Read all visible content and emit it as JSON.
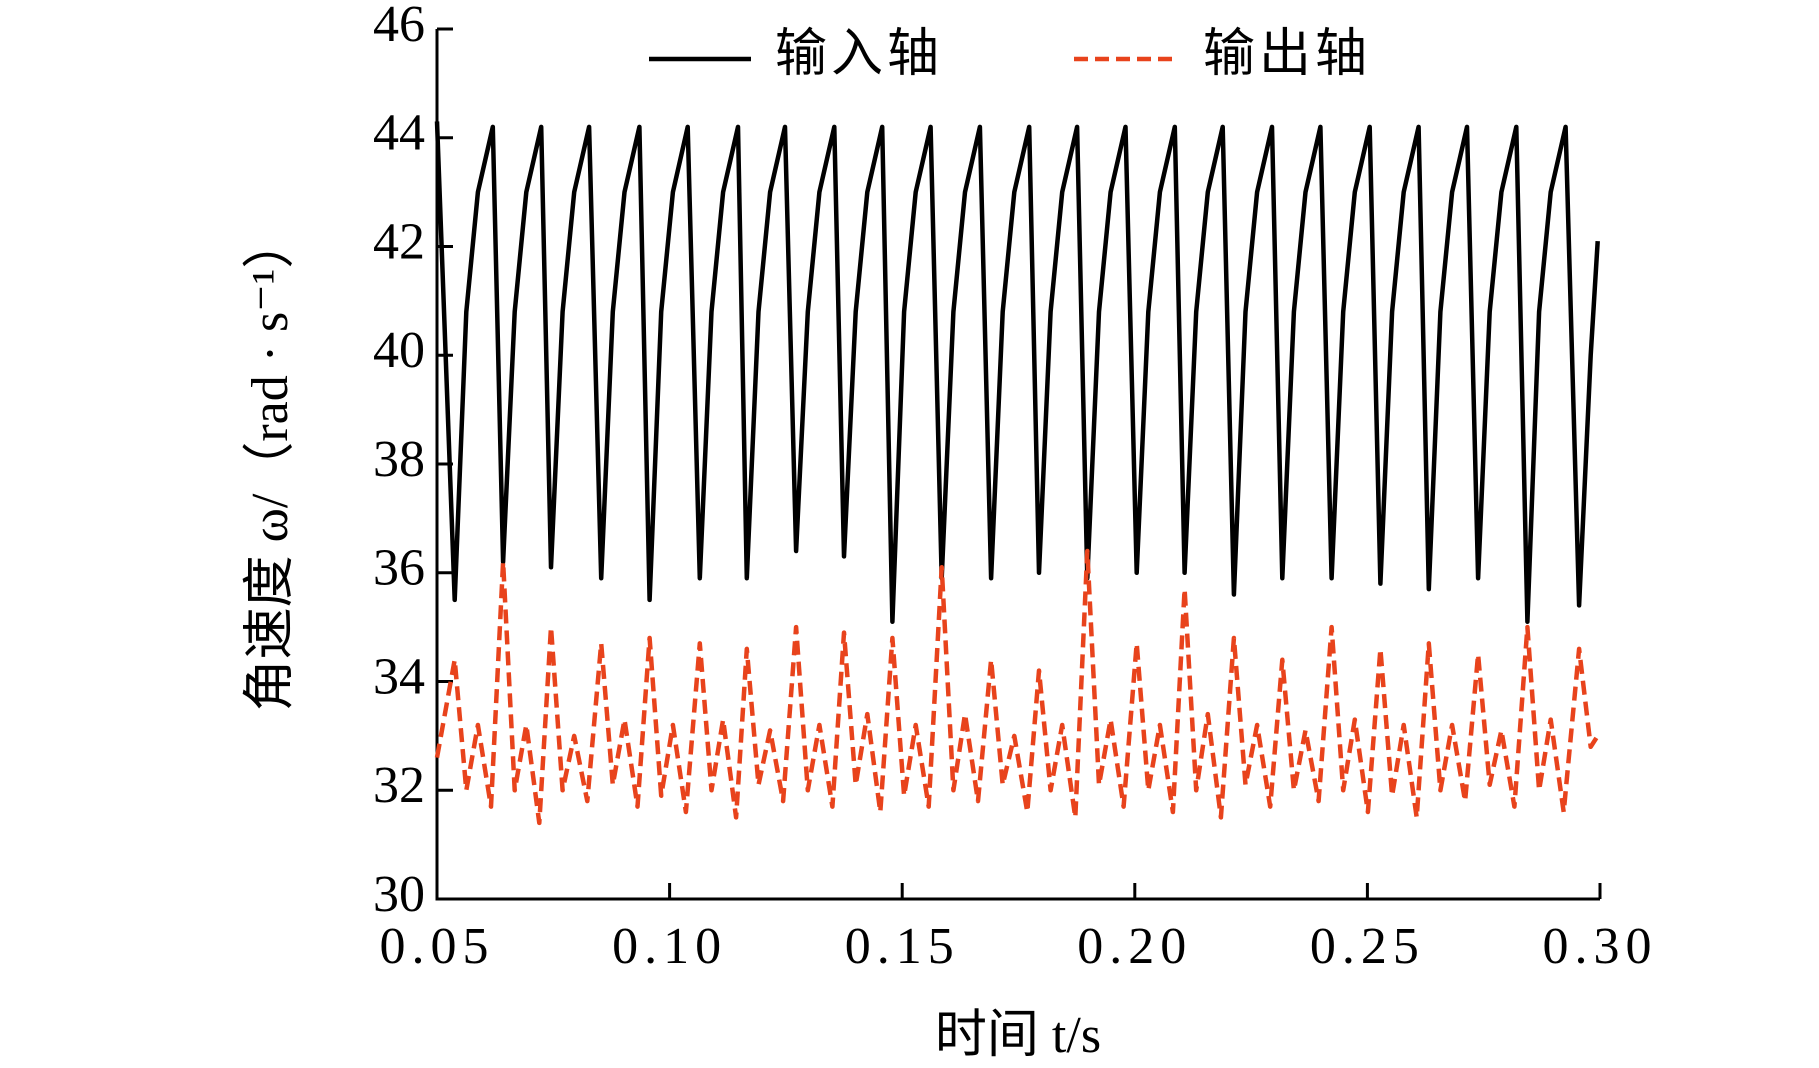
{
  "chart_data": {
    "type": "line",
    "xlabel": "时间 t/s",
    "ylabel": "角速度 ω/（rad · s⁻¹）",
    "xlim": [
      0.05,
      0.3
    ],
    "ylim": [
      30,
      46
    ],
    "xticks": [
      0.05,
      {
        "value": 0.1,
        "label": "0.10"
      },
      0.15,
      {
        "value": 0.2,
        "label": "0.20"
      },
      0.25,
      {
        "value": 0.3,
        "label": "0.30"
      }
    ],
    "yticks": [
      30,
      32,
      34,
      36,
      38,
      40,
      42,
      44,
      46
    ],
    "legend": "top",
    "series": [
      {
        "name": "输入轴",
        "color": "#000000",
        "dash": false,
        "x": [
          0.05,
          0.0538,
          0.0563,
          0.0588,
          0.062,
          0.0642,
          0.0667,
          0.0692,
          0.0724,
          0.0745,
          0.077,
          0.0795,
          0.0827,
          0.0853,
          0.0878,
          0.0903,
          0.0935,
          0.0957,
          0.0982,
          0.1007,
          0.1039,
          0.1065,
          0.109,
          0.1115,
          0.1147,
          0.1166,
          0.1191,
          0.1216,
          0.1248,
          0.1272,
          0.1297,
          0.1322,
          0.1354,
          0.1375,
          0.14,
          0.1425,
          0.1457,
          0.1479,
          0.1504,
          0.1529,
          0.1561,
          0.1585,
          0.161,
          0.1635,
          0.1667,
          0.1691,
          0.1716,
          0.1741,
          0.1773,
          0.1794,
          0.1819,
          0.1844,
          0.1876,
          0.1898,
          0.1923,
          0.1948,
          0.198,
          0.2004,
          0.2029,
          0.2054,
          0.2086,
          0.2107,
          0.2132,
          0.2157,
          0.2189,
          0.2213,
          0.2238,
          0.2263,
          0.2295,
          0.2317,
          0.2342,
          0.2367,
          0.2399,
          0.2423,
          0.2448,
          0.2473,
          0.2505,
          0.2528,
          0.2553,
          0.2578,
          0.261,
          0.2632,
          0.2657,
          0.2682,
          0.2714,
          0.2738,
          0.2763,
          0.2788,
          0.282,
          0.2844,
          0.2869,
          0.2894,
          0.2926,
          0.2955,
          0.298,
          0.2995
        ],
        "values": [
          44.3,
          35.5,
          40.8,
          43.0,
          44.2,
          36.2,
          40.8,
          43.0,
          44.2,
          36.1,
          40.8,
          43.0,
          44.2,
          35.9,
          40.8,
          43.0,
          44.2,
          35.5,
          40.8,
          43.0,
          44.2,
          35.9,
          40.8,
          43.0,
          44.2,
          35.9,
          40.8,
          43.0,
          44.2,
          36.4,
          40.8,
          43.0,
          44.2,
          36.3,
          40.8,
          43.0,
          44.2,
          35.1,
          40.8,
          43.0,
          44.2,
          35.9,
          40.8,
          43.0,
          44.2,
          35.9,
          40.8,
          43.0,
          44.2,
          36.0,
          40.8,
          43.0,
          44.2,
          35.9,
          40.8,
          43.0,
          44.2,
          36.0,
          40.8,
          43.0,
          44.2,
          36.0,
          40.8,
          43.0,
          44.2,
          35.6,
          40.8,
          43.0,
          44.2,
          35.9,
          40.8,
          43.0,
          44.2,
          35.9,
          40.8,
          43.0,
          44.2,
          35.8,
          40.8,
          43.0,
          44.2,
          35.7,
          40.8,
          43.0,
          44.2,
          35.9,
          40.8,
          43.0,
          44.2,
          35.1,
          40.8,
          43.0,
          44.2,
          35.4,
          40.0,
          42.1
        ]
      },
      {
        "name": "输出轴",
        "color": "#e8431c",
        "dash": true,
        "x": [
          0.05,
          0.0538,
          0.0563,
          0.0588,
          0.0616,
          0.0642,
          0.0667,
          0.0692,
          0.072,
          0.0745,
          0.077,
          0.0795,
          0.0823,
          0.0853,
          0.0878,
          0.0903,
          0.0931,
          0.0957,
          0.0982,
          0.1007,
          0.1035,
          0.1065,
          0.109,
          0.1115,
          0.1143,
          0.1166,
          0.1191,
          0.1216,
          0.1244,
          0.1272,
          0.1297,
          0.1322,
          0.135,
          0.1375,
          0.14,
          0.1425,
          0.1453,
          0.1479,
          0.1504,
          0.1529,
          0.1557,
          0.1585,
          0.161,
          0.1635,
          0.1663,
          0.1691,
          0.1716,
          0.1741,
          0.1769,
          0.1794,
          0.1819,
          0.1844,
          0.1872,
          0.1898,
          0.1923,
          0.1948,
          0.1976,
          0.2004,
          0.2029,
          0.2054,
          0.2082,
          0.2107,
          0.2132,
          0.2157,
          0.2185,
          0.2213,
          0.2238,
          0.2263,
          0.2291,
          0.2317,
          0.2342,
          0.2367,
          0.2395,
          0.2423,
          0.2448,
          0.2473,
          0.2501,
          0.2528,
          0.2553,
          0.2578,
          0.2606,
          0.2632,
          0.2657,
          0.2682,
          0.271,
          0.2738,
          0.2763,
          0.2788,
          0.2816,
          0.2844,
          0.2869,
          0.2894,
          0.2922,
          0.2955,
          0.298,
          0.2995
        ],
        "values": [
          32.6,
          34.4,
          32.0,
          33.2,
          31.7,
          36.2,
          32.0,
          33.2,
          31.4,
          35.0,
          32.0,
          33.0,
          31.8,
          34.7,
          32.1,
          33.3,
          31.7,
          34.8,
          31.9,
          33.2,
          31.6,
          34.7,
          32.0,
          33.3,
          31.5,
          34.6,
          32.1,
          33.1,
          31.8,
          35.0,
          32.0,
          33.2,
          31.7,
          34.9,
          32.1,
          33.4,
          31.6,
          34.8,
          31.9,
          33.2,
          31.7,
          36.1,
          32.0,
          33.4,
          31.8,
          34.4,
          32.1,
          33.0,
          31.6,
          34.2,
          32.0,
          33.2,
          31.5,
          36.4,
          32.1,
          33.3,
          31.7,
          34.7,
          32.0,
          33.2,
          31.6,
          35.7,
          32.0,
          33.4,
          31.5,
          34.8,
          32.1,
          33.2,
          31.7,
          34.4,
          32.0,
          33.1,
          31.8,
          35.0,
          32.0,
          33.3,
          31.6,
          34.6,
          31.9,
          33.2,
          31.5,
          34.7,
          32.0,
          33.2,
          31.8,
          34.5,
          32.1,
          33.1,
          31.7,
          35.0,
          32.0,
          33.3,
          31.6,
          34.6,
          32.8,
          33.0
        ]
      }
    ]
  }
}
